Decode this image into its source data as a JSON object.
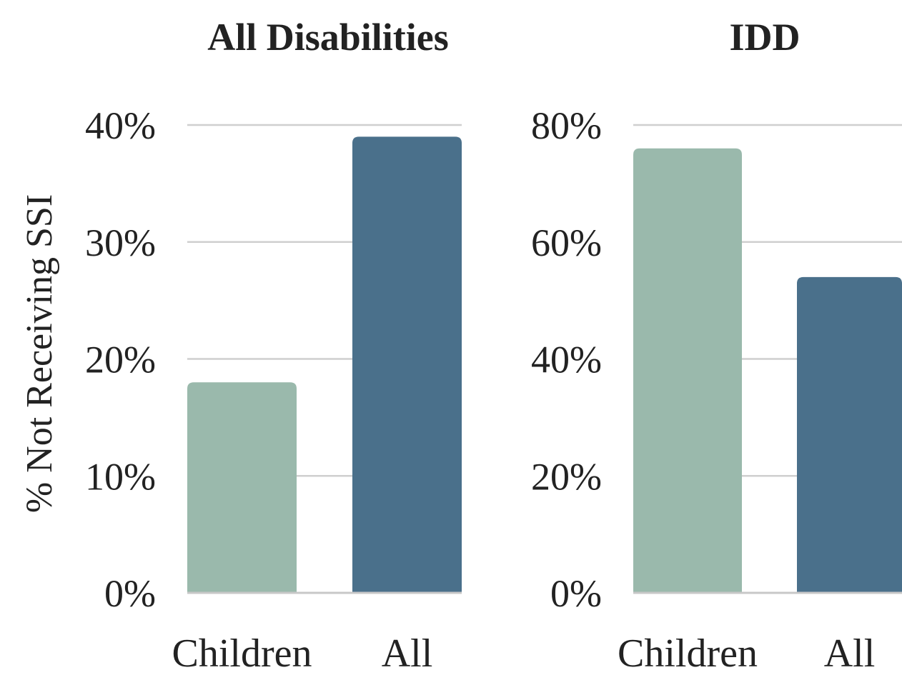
{
  "chart_data": [
    {
      "type": "bar",
      "title": "All Disabilities",
      "ylabel": "% Not Receiving SSI",
      "categories": [
        "Children",
        "All"
      ],
      "values": [
        18,
        39
      ],
      "yticks": [
        "0%",
        "10%",
        "20%",
        "30%",
        "40%"
      ],
      "ylim": [
        0,
        40
      ],
      "grid": true,
      "colors": [
        "#9ab9ac",
        "#4a708b"
      ]
    },
    {
      "type": "bar",
      "title": "IDD",
      "ylabel": "",
      "categories": [
        "Children",
        "All"
      ],
      "values": [
        76,
        54
      ],
      "yticks": [
        "0%",
        "20%",
        "40%",
        "60%",
        "80%"
      ],
      "ylim": [
        0,
        80
      ],
      "grid": true,
      "colors": [
        "#9ab9ac",
        "#4a708b"
      ]
    }
  ]
}
